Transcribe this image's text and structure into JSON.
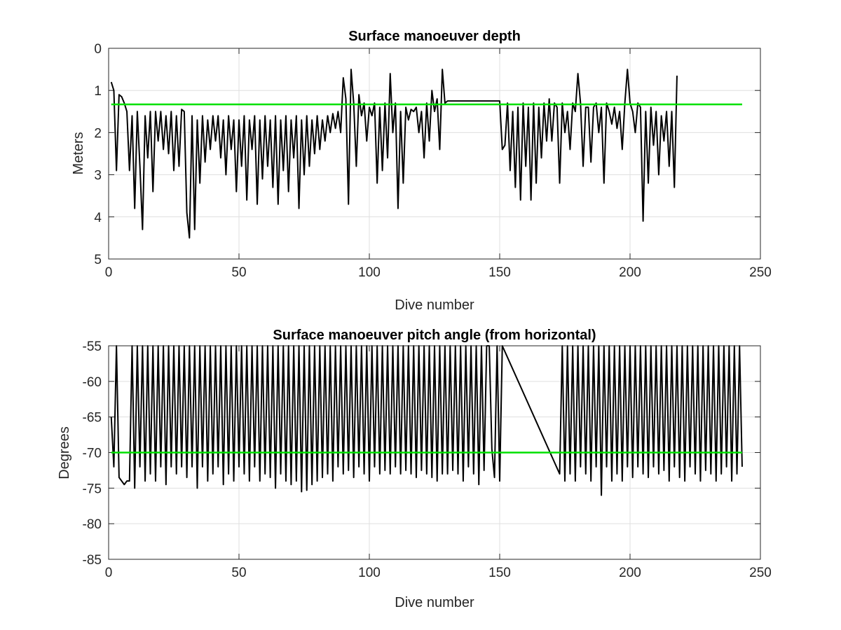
{
  "chart_data": [
    {
      "type": "line",
      "title": "Surface manoeuver depth",
      "xlabel": "Dive number",
      "ylabel": "Meters",
      "xlim": [
        0,
        250
      ],
      "ylim": [
        0,
        5
      ],
      "y_reversed": true,
      "grid": true,
      "xticks": [
        0,
        50,
        100,
        150,
        200,
        250
      ],
      "yticks": [
        0,
        1,
        2,
        3,
        4,
        5
      ],
      "series": [
        {
          "color": "#000000",
          "values": [
            0.8,
            1.0,
            2.9,
            1.1,
            1.15,
            1.3,
            1.5,
            2.9,
            1.6,
            3.8,
            1.5,
            2.8,
            4.3,
            1.6,
            2.6,
            1.5,
            3.4,
            1.5,
            2.2,
            1.5,
            2.4,
            1.6,
            2.5,
            1.5,
            2.9,
            1.6,
            2.8,
            1.45,
            1.5,
            3.9,
            4.5,
            1.6,
            4.3,
            1.7,
            3.2,
            1.6,
            2.7,
            1.7,
            2.4,
            1.6,
            2.2,
            1.6,
            2.6,
            1.7,
            3.0,
            1.6,
            2.4,
            1.7,
            3.4,
            1.7,
            2.8,
            1.6,
            3.6,
            1.7,
            2.4,
            1.6,
            3.7,
            1.7,
            3.1,
            1.6,
            2.8,
            1.7,
            3.3,
            1.6,
            3.7,
            1.7,
            2.9,
            1.6,
            3.4,
            1.7,
            2.6,
            1.6,
            3.8,
            1.7,
            3.0,
            1.6,
            2.8,
            1.7,
            2.5,
            1.6,
            2.4,
            1.7,
            2.2,
            1.6,
            2.0,
            1.55,
            1.9,
            1.5,
            2.0,
            0.7,
            1.2,
            3.7,
            0.5,
            1.3,
            2.8,
            1.1,
            1.6,
            1.3,
            2.2,
            1.4,
            1.6,
            1.3,
            3.2,
            1.4,
            2.9,
            1.3,
            2.6,
            0.6,
            2.0,
            1.3,
            3.8,
            1.5,
            3.2,
            1.4,
            1.7,
            1.45,
            1.5,
            1.4,
            2.0,
            1.5,
            2.6,
            1.3,
            2.2,
            1.0,
            1.5,
            1.2,
            2.4,
            0.5,
            1.3,
            1.25,
            1.25,
            1.25,
            1.25,
            1.25,
            1.25,
            1.25,
            1.25,
            1.25,
            1.25,
            1.25,
            1.25,
            1.25,
            1.25,
            1.25,
            1.25,
            1.25,
            1.25,
            1.25,
            1.25,
            1.25,
            2.4,
            2.3,
            1.3,
            2.9,
            1.5,
            3.3,
            1.4,
            3.6,
            1.3,
            2.8,
            1.4,
            3.6,
            1.3,
            3.2,
            1.4,
            2.6,
            1.3,
            2.2,
            1.2,
            2.2,
            1.3,
            1.4,
            3.2,
            1.3,
            2.0,
            1.5,
            2.4,
            1.3,
            1.5,
            0.6,
            1.3,
            2.8,
            1.4,
            1.4,
            2.7,
            1.4,
            1.3,
            2.0,
            1.4,
            3.2,
            1.3,
            1.5,
            1.8,
            1.4,
            1.9,
            1.5,
            2.4,
            1.3,
            0.5,
            1.3,
            1.5,
            2.0,
            1.3,
            1.4,
            4.1,
            1.5,
            3.2,
            1.4,
            2.3,
            1.5,
            3.0,
            1.6,
            2.2,
            1.5,
            2.8,
            1.5,
            3.3,
            0.65
          ]
        },
        {
          "color": "#00e000",
          "x": [
            1,
            243
          ],
          "values": [
            1.33,
            1.33
          ]
        }
      ]
    },
    {
      "type": "line",
      "title": "Surface manoeuver pitch angle (from horizontal)",
      "xlabel": "Dive number",
      "ylabel": "Degrees",
      "xlim": [
        0,
        250
      ],
      "ylim": [
        -85,
        -55
      ],
      "grid": true,
      "xticks": [
        0,
        50,
        100,
        150,
        200,
        250
      ],
      "yticks": [
        -55,
        -60,
        -65,
        -70,
        -75,
        -80,
        -85
      ],
      "series": [
        {
          "color": "#000000",
          "x": [
            1,
            2,
            3,
            4,
            5,
            6,
            7,
            8,
            9,
            10,
            11,
            12,
            13,
            14,
            15,
            16,
            17,
            18,
            19,
            20,
            21,
            22,
            23,
            24,
            25,
            26,
            27,
            28,
            29,
            30,
            31,
            32,
            33,
            34,
            35,
            36,
            37,
            38,
            39,
            40,
            41,
            42,
            43,
            44,
            45,
            46,
            47,
            48,
            49,
            50,
            51,
            52,
            53,
            54,
            55,
            56,
            57,
            58,
            59,
            60,
            61,
            62,
            63,
            64,
            65,
            66,
            67,
            68,
            69,
            70,
            71,
            72,
            73,
            74,
            75,
            76,
            77,
            78,
            79,
            80,
            81,
            82,
            83,
            84,
            85,
            86,
            87,
            88,
            89,
            90,
            91,
            92,
            93,
            94,
            95,
            96,
            97,
            98,
            99,
            100,
            101,
            102,
            103,
            104,
            105,
            106,
            107,
            108,
            109,
            110,
            111,
            112,
            113,
            114,
            115,
            116,
            117,
            118,
            119,
            120,
            121,
            122,
            123,
            124,
            125,
            126,
            127,
            128,
            129,
            130,
            131,
            132,
            133,
            134,
            135,
            136,
            137,
            138,
            139,
            140,
            141,
            142,
            143,
            144,
            145,
            146,
            147,
            148,
            149,
            150,
            151,
            173,
            174,
            175,
            176,
            177,
            178,
            179,
            180,
            181,
            182,
            183,
            184,
            185,
            186,
            187,
            188,
            189,
            190,
            191,
            192,
            193,
            194,
            195,
            196,
            197,
            198,
            199,
            200,
            201,
            202,
            203,
            204,
            205,
            206,
            207,
            208,
            209,
            210,
            211,
            212,
            213,
            214,
            215,
            216,
            217,
            218,
            219,
            220,
            221,
            222,
            223,
            224,
            225,
            226,
            227,
            228,
            229,
            230,
            231,
            232,
            233,
            234,
            235,
            236,
            237,
            238,
            239,
            240,
            241,
            242,
            243
          ],
          "values": [
            -65,
            -72,
            -55,
            -73.5,
            -74,
            -74.5,
            -74,
            -74,
            -55,
            -75,
            -55,
            -72,
            -55,
            -74,
            -55,
            -73,
            -55,
            -74,
            -55,
            -72,
            -55,
            -74.5,
            -55,
            -72,
            -55,
            -73,
            -55,
            -72,
            -55,
            -73.5,
            -55,
            -72,
            -55,
            -75,
            -55,
            -72,
            -55,
            -74,
            -55,
            -73,
            -55,
            -72,
            -55,
            -74.5,
            -55,
            -73,
            -55,
            -74,
            -55,
            -72,
            -55,
            -73,
            -55,
            -74,
            -55,
            -72,
            -55,
            -74,
            -55,
            -73,
            -55,
            -73.5,
            -55,
            -75,
            -55,
            -73,
            -55,
            -74,
            -55,
            -74.5,
            -55,
            -74,
            -55,
            -75.5,
            -55,
            -75.3,
            -55,
            -74.5,
            -55,
            -74,
            -55,
            -73.5,
            -55,
            -73,
            -55,
            -74,
            -55,
            -72,
            -55,
            -73,
            -55,
            -72.5,
            -55,
            -73.5,
            -55,
            -72,
            -55,
            -73,
            -55,
            -74,
            -55,
            -72,
            -55,
            -73,
            -55,
            -72.5,
            -55,
            -73,
            -55,
            -72,
            -55,
            -73,
            -55,
            -72.5,
            -55,
            -73,
            -55,
            -73.5,
            -55,
            -72.5,
            -55,
            -73,
            -55,
            -73.5,
            -55,
            -74,
            -55,
            -73,
            -55,
            -73,
            -55,
            -72.5,
            -55,
            -73,
            -55,
            -74,
            -55,
            -72,
            -55,
            -73,
            -55,
            -74.5,
            -55,
            -72.5,
            -55,
            -55,
            -69.5,
            -73.5,
            -55,
            -74,
            -55,
            -73,
            -55,
            -74,
            -55,
            -73,
            -55,
            -74,
            -55,
            -72,
            -55,
            -73,
            -55,
            -74,
            -55,
            -72,
            -55,
            -76,
            -55,
            -72,
            -55,
            -74,
            -55,
            -73,
            -55,
            -74,
            -55,
            -72,
            -55,
            -73.5,
            -55,
            -72,
            -55,
            -73,
            -55,
            -73.5,
            -55,
            -72,
            -55,
            -73,
            -55,
            -72.5,
            -55,
            -74,
            -55,
            -72,
            -55,
            -73.5,
            -55,
            -74,
            -55,
            -72,
            -55,
            -73,
            -55,
            -74,
            -55,
            -72.5,
            -55,
            -73,
            -55,
            -74,
            -55,
            -73,
            -55,
            -72,
            -55,
            -74,
            -55,
            -73,
            -55,
            -72
          ]
        },
        {
          "color": "#00e000",
          "x": [
            1,
            243
          ],
          "values": [
            -70,
            -70
          ]
        }
      ]
    }
  ]
}
